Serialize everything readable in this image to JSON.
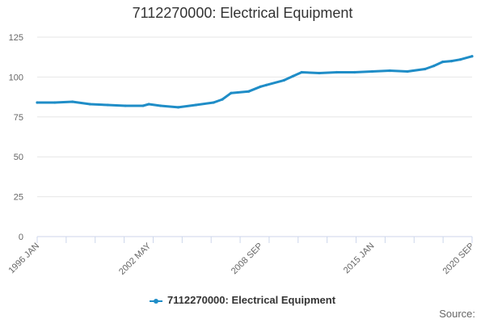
{
  "chart_data": {
    "type": "line",
    "title": "7112270000: Electrical Equipment",
    "xlabel": "",
    "ylabel": "",
    "ylim": [
      0,
      125
    ],
    "yticks": [
      0,
      25,
      50,
      75,
      100,
      125
    ],
    "x_tick_labels": [
      "1996 JAN",
      "2002 MAY",
      "2008 SEP",
      "2015 JAN",
      "2020 SEP"
    ],
    "x_range": [
      "1996 JAN",
      "2020 SEP"
    ],
    "grid": true,
    "legend_position": "bottom-center",
    "series": [
      {
        "name": "7112270000: Electrical Equipment",
        "color": "#1f8dc7",
        "x": [
          "1996 JAN",
          "1997 JAN",
          "1998 JAN",
          "1999 JAN",
          "2000 JAN",
          "2001 JAN",
          "2002 JAN",
          "2002 MAY",
          "2003 JAN",
          "2004 JAN",
          "2005 JAN",
          "2006 JAN",
          "2006 JUL",
          "2007 JAN",
          "2008 JAN",
          "2008 SEP",
          "2009 JAN",
          "2010 JAN",
          "2010 JUL",
          "2011 JAN",
          "2012 JAN",
          "2013 JAN",
          "2014 JAN",
          "2015 JAN",
          "2016 JAN",
          "2017 JAN",
          "2018 JAN",
          "2018 JUL",
          "2019 JAN",
          "2019 JUL",
          "2020 JAN",
          "2020 SEP"
        ],
        "values": [
          84,
          84,
          84.5,
          83,
          82.5,
          82,
          82,
          83,
          82,
          81,
          82.5,
          84,
          86,
          90,
          91,
          94,
          95,
          98,
          100.5,
          103,
          102.5,
          103,
          103,
          103.5,
          104,
          103.5,
          105,
          107,
          109.5,
          110,
          111,
          113
        ]
      }
    ]
  },
  "legend": {
    "label": "7112270000: Electrical Equipment"
  },
  "source_label": "Source:"
}
